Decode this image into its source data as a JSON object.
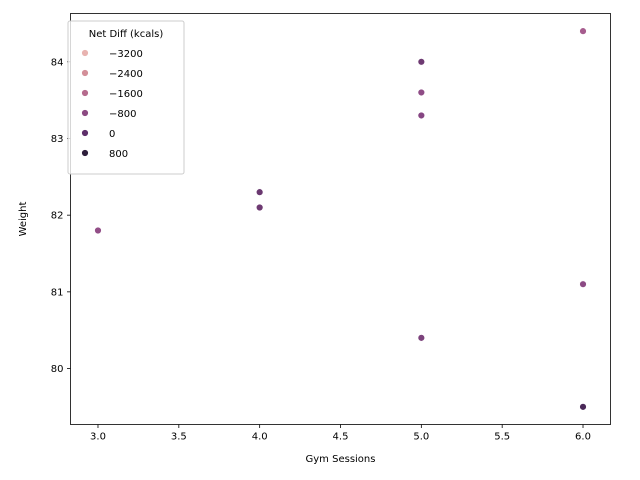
{
  "chart_data": {
    "type": "scatter",
    "xlabel": "Gym Sessions",
    "ylabel": "Weight",
    "xlim": [
      2.83,
      6.17
    ],
    "ylim": [
      79.27,
      84.63
    ],
    "x_ticks": [
      3.0,
      3.5,
      4.0,
      4.5,
      5.0,
      5.5,
      6.0
    ],
    "x_tick_labels": [
      "3.0",
      "3.5",
      "4.0",
      "4.5",
      "5.0",
      "5.5",
      "6.0"
    ],
    "y_ticks": [
      80,
      81,
      82,
      83,
      84
    ],
    "y_tick_labels": [
      "80",
      "81",
      "82",
      "83",
      "84"
    ],
    "grid": false,
    "legend": {
      "title": "Net Diff (kcals)",
      "placement": "top-left",
      "entries": [
        {
          "label": "−3200",
          "color": "#e8b3b0"
        },
        {
          "label": "−2400",
          "color": "#d38f99"
        },
        {
          "label": "−1600",
          "color": "#b56b8d"
        },
        {
          "label": "−800",
          "color": "#8c4a82"
        },
        {
          "label": "0",
          "color": "#5e2f6a"
        },
        {
          "label": "800",
          "color": "#2e1e3b"
        }
      ]
    },
    "points": [
      {
        "x": 6.0,
        "y": 84.4,
        "color": "#a65c8e"
      },
      {
        "x": 5.0,
        "y": 84.0,
        "color": "#6e3a72"
      },
      {
        "x": 5.0,
        "y": 83.6,
        "color": "#8f4c86"
      },
      {
        "x": 5.0,
        "y": 83.3,
        "color": "#864683"
      },
      {
        "x": 4.0,
        "y": 82.3,
        "color": "#6a3870"
      },
      {
        "x": 4.0,
        "y": 82.1,
        "color": "#6e3a72"
      },
      {
        "x": 3.0,
        "y": 81.8,
        "color": "#924e87"
      },
      {
        "x": 6.0,
        "y": 81.1,
        "color": "#8c4a84"
      },
      {
        "x": 5.0,
        "y": 80.4,
        "color": "#7c427c"
      },
      {
        "x": 6.0,
        "y": 79.5,
        "color": "#4a2858"
      }
    ]
  }
}
